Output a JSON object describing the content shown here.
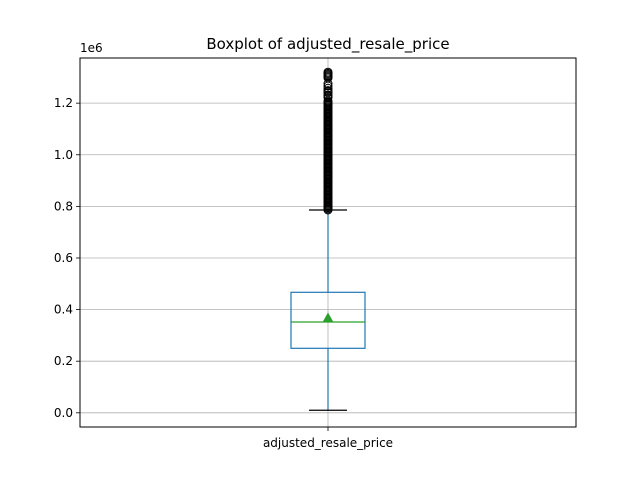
{
  "chart_data": {
    "type": "boxplot",
    "title": "Boxplot of adjusted_resale_price",
    "xlabel": "",
    "ylabel": "",
    "y_offset_text": "1e6",
    "categories": [
      "adjusted_resale_price"
    ],
    "ylim": [
      -55000,
      1375000
    ],
    "y_ticks": [
      {
        "value": 0,
        "label": "0.0"
      },
      {
        "value": 200000,
        "label": "0.2"
      },
      {
        "value": 400000,
        "label": "0.4"
      },
      {
        "value": 600000,
        "label": "0.6"
      },
      {
        "value": 800000,
        "label": "0.8"
      },
      {
        "value": 1000000,
        "label": "1.0"
      },
      {
        "value": 1200000,
        "label": "1.2"
      }
    ],
    "grid": true,
    "boxes": [
      {
        "category": "adjusted_resale_price",
        "whisker_low": 10000,
        "q1": 250000,
        "median": 352000,
        "q3": 467000,
        "whisker_high": 786000,
        "mean": 368000,
        "outlier_range": [
          786000,
          1320000
        ]
      }
    ],
    "colors": {
      "box": "#1f77b4",
      "median": "#2ca02c",
      "mean_marker": "#2ca02c",
      "whisker_cap": "#000000",
      "outliers": "#000000",
      "grid": "#b0b0b0"
    }
  }
}
